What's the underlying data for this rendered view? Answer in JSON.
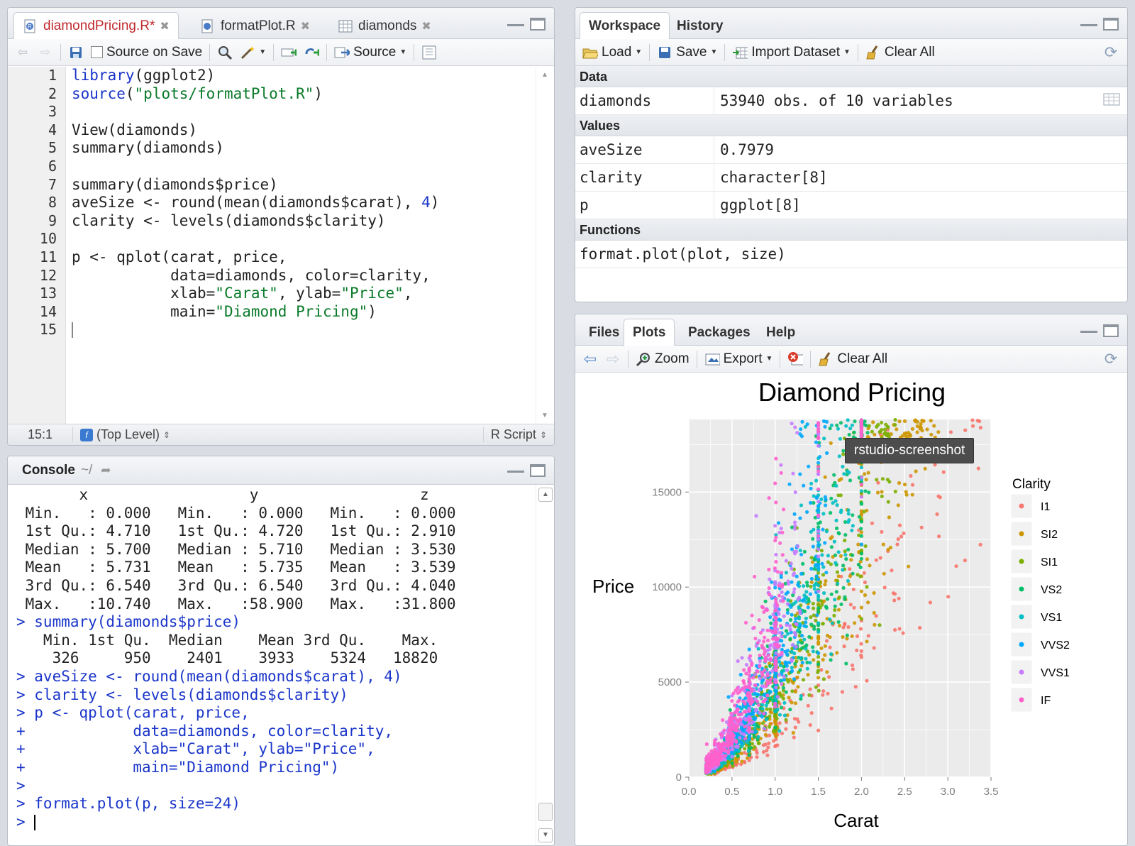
{
  "editor": {
    "tabs": [
      {
        "label": "diamondPricing.R*",
        "active": true,
        "color": "#c0282d"
      },
      {
        "label": "formatPlot.R",
        "active": false
      },
      {
        "label": "diamonds",
        "active": false
      }
    ],
    "toolbar": {
      "source_on_save": "Source on Save",
      "source": "Source"
    },
    "line_numbers": [
      "1",
      "2",
      "3",
      "4",
      "5",
      "6",
      "7",
      "8",
      "9",
      "10",
      "11",
      "12",
      "13",
      "14",
      "15"
    ],
    "status": {
      "position": "15:1",
      "scope": "(Top Level)",
      "file_type": "R Script"
    }
  },
  "console": {
    "title": "Console",
    "path": "~/"
  },
  "workspace": {
    "tabs": [
      "Workspace",
      "History"
    ],
    "toolbar": {
      "load": "Load",
      "save": "Save",
      "import": "Import Dataset",
      "clear": "Clear All"
    },
    "sections": {
      "data": "Data",
      "values": "Values",
      "functions": "Functions"
    },
    "data": [
      {
        "name": "diamonds",
        "value": "53940 obs. of 10 variables"
      }
    ],
    "values": [
      {
        "name": "aveSize",
        "value": "0.7979"
      },
      {
        "name": "clarity",
        "value": "character[8]"
      },
      {
        "name": "p",
        "value": "ggplot[8]"
      }
    ],
    "functions": [
      {
        "name": "format.plot(plot, size)"
      }
    ]
  },
  "plots": {
    "tabs": [
      "Files",
      "Plots",
      "Packages",
      "Help"
    ],
    "active_tab": "Plots",
    "toolbar": {
      "zoom": "Zoom",
      "export": "Export",
      "clear": "Clear All"
    },
    "tooltip": "rstudio-screenshot"
  },
  "chart_data": {
    "type": "scatter",
    "title": "Diamond Pricing",
    "xlabel": "Carat",
    "ylabel": "Price",
    "xlim": [
      0,
      3.5
    ],
    "ylim": [
      0,
      18820
    ],
    "xticks": [
      "0.0",
      "0.5",
      "1.0",
      "1.5",
      "2.0",
      "2.5",
      "3.0",
      "3.5"
    ],
    "yticks": [
      "0",
      "5000",
      "10000",
      "15000"
    ],
    "legend_title": "Clarity",
    "legend_placement": "right",
    "series": [
      {
        "name": "I1",
        "color": "#f8766d"
      },
      {
        "name": "SI2",
        "color": "#cd9600"
      },
      {
        "name": "SI1",
        "color": "#7cae00"
      },
      {
        "name": "VS2",
        "color": "#00be67"
      },
      {
        "name": "VS1",
        "color": "#00bfc4"
      },
      {
        "name": "VVS2",
        "color": "#00a9ff"
      },
      {
        "name": "VVS1",
        "color": "#c77cff"
      },
      {
        "name": "IF",
        "color": "#ff61cc"
      }
    ],
    "background": "#ebebeb"
  }
}
